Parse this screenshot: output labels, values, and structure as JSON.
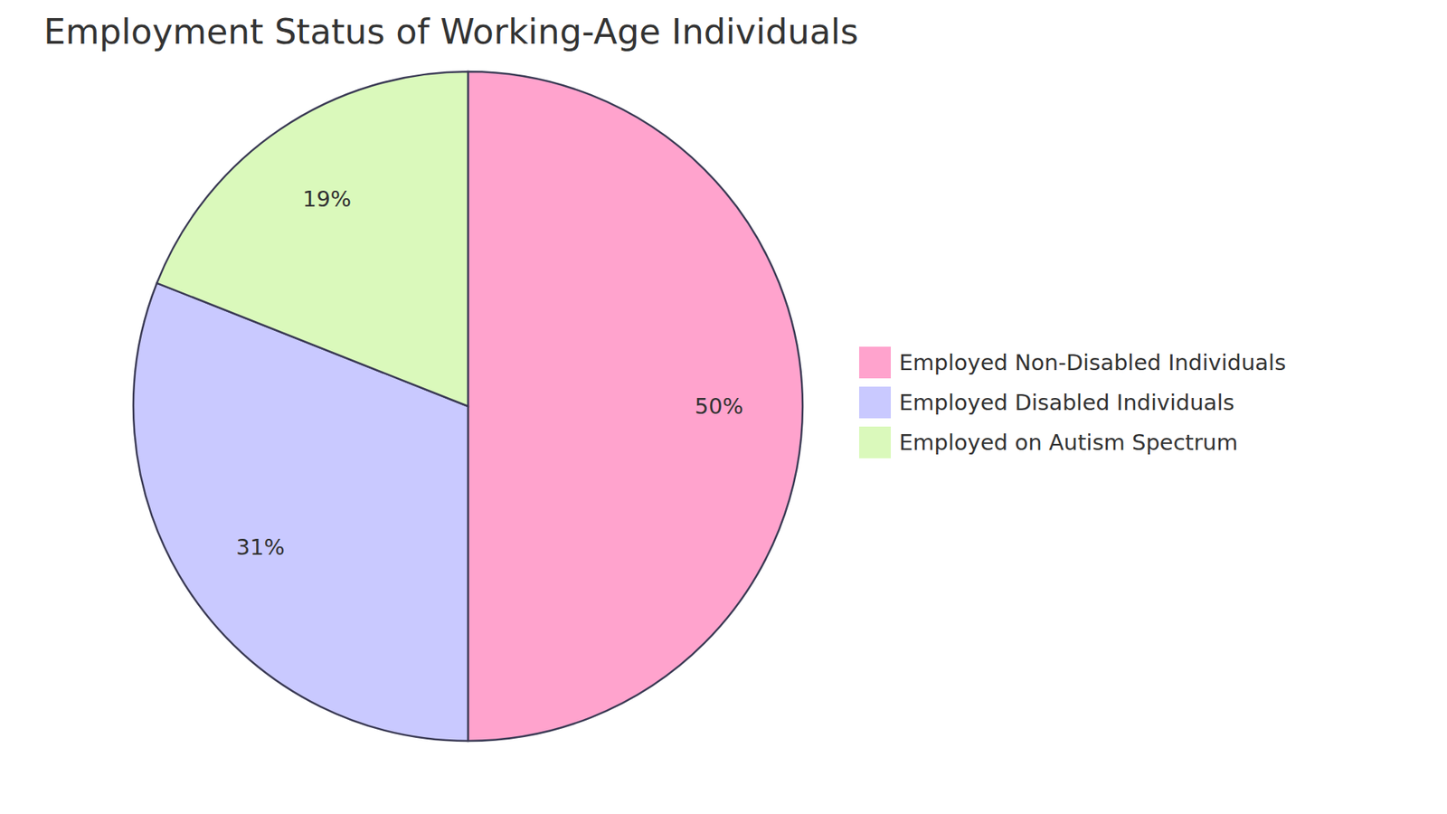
{
  "chart_data": {
    "type": "pie",
    "title": "Employment Status of Working-Age Individuals",
    "categories": [
      "Employed Non-Disabled Individuals",
      "Employed Disabled Individuals",
      "Employed on Autism Spectrum"
    ],
    "values": [
      50,
      31,
      19
    ],
    "colors": [
      "#ffa3cd",
      "#c9c9ff",
      "#daf9bb"
    ],
    "data_labels": true
  }
}
